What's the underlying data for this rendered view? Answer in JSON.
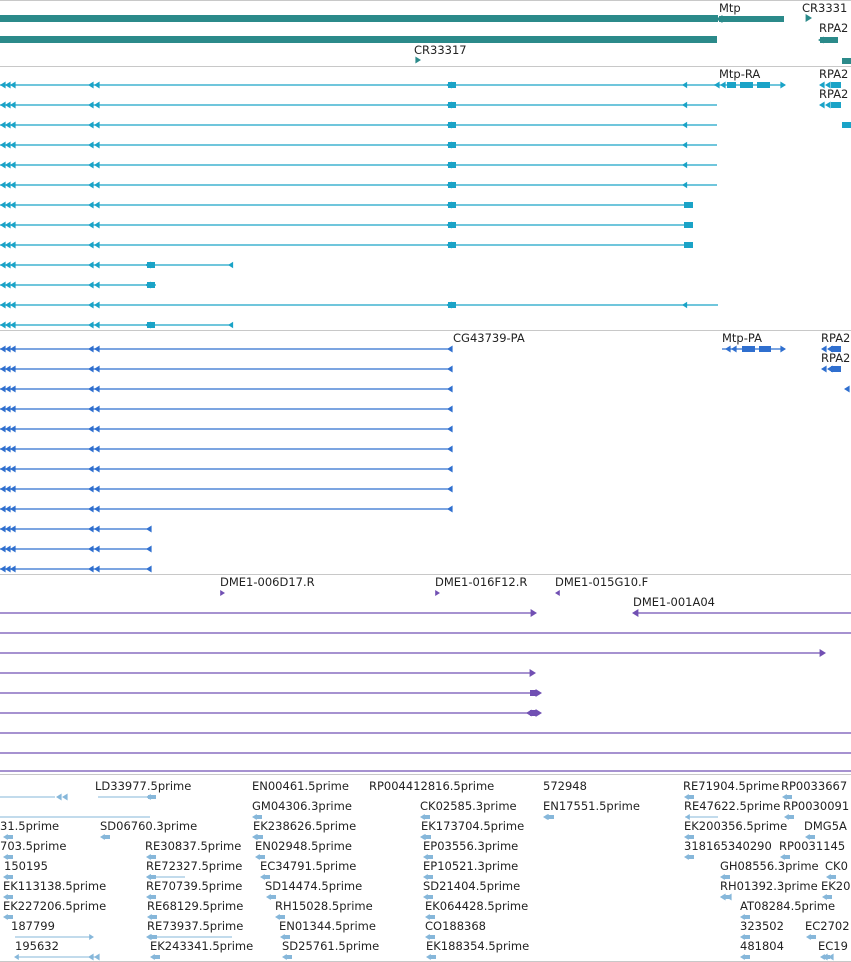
{
  "colors": {
    "gene": "#2b8a8a",
    "transcript": "#1aa3c7",
    "protein": "#2f6fcf",
    "clone": "#7150b3",
    "est": "#86b7da",
    "divider": "#c8c8c8"
  },
  "tracks": {
    "genes": {
      "labels": [
        "Mtp",
        "CR3331",
        "RPA2",
        "CR33317"
      ]
    },
    "transcripts": {
      "labels": [
        "Mtp-RA",
        "RPA2",
        "RPA2"
      ]
    },
    "proteins": {
      "labels": [
        "CG43739-PA",
        "Mtp-PA",
        "RPA2",
        "RPA2"
      ]
    },
    "clones": {
      "labels": [
        "DME1-006D17.R",
        "DME1-016F12.R",
        "DME1-015G10.F",
        "DME1-001A04"
      ]
    },
    "ests": {
      "labels": [
        "LD33977.5prime",
        "EN00461.5prime",
        "RP004412816.5prime",
        "572948",
        "RE71904.5prime",
        "RP0033667",
        "GM04306.3prime",
        "CK02585.3prime",
        "EN17551.5prime",
        "RE47622.5prime",
        "RP0030091",
        "31.5prime",
        "SD06760.3prime",
        "EK238626.5prime",
        "EK173704.5prime",
        "EK200356.5prime",
        "DMG5A",
        "703.5prime",
        "RE30837.5prime",
        "EN02948.5prime",
        "EP03556.3prime",
        "318165340290",
        "RP0031145",
        "150195",
        "RE72327.5prime",
        "EC34791.5prime",
        "EP10521.3prime",
        "GH08556.3prime",
        "CK0",
        "EK113138.5prime",
        "RE70739.5prime",
        "SD14474.5prime",
        "SD21404.5prime",
        "RH01392.3prime",
        "EK20",
        "EK227206.5prime",
        "RE68129.5prime",
        "RH15028.5prime",
        "EK064428.5prime",
        "AT08284.5prime",
        "187799",
        "RE73937.5prime",
        "EN01344.5prime",
        "CO188368",
        "323502",
        "EC2702",
        "195632",
        "EK243341.5prime",
        "SD25761.5prime",
        "EK188354.5prime",
        "481804",
        "EC19"
      ]
    }
  }
}
